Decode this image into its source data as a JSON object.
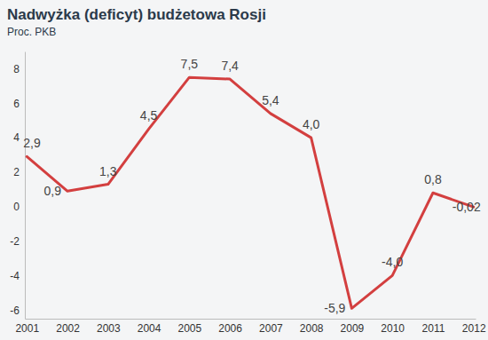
{
  "chart_data": {
    "type": "line",
    "title": "Nadwyżka (deficyt) budżetowa Rosji",
    "subtitle": "Proc. PKB",
    "categories": [
      "2001",
      "2002",
      "2003",
      "2004",
      "2005",
      "2006",
      "2007",
      "2008",
      "2009",
      "2010",
      "2011",
      "2012"
    ],
    "values": [
      2.9,
      0.9,
      1.3,
      4.5,
      7.5,
      7.4,
      5.4,
      4.0,
      -5.9,
      -4.0,
      0.8,
      -0.02
    ],
    "value_labels": [
      "2,9",
      "0,9",
      "1,3",
      "4,5",
      "7,5",
      "7,4",
      "5,4",
      "4,0",
      "-5,9",
      "-4,0",
      "0,8",
      "-0,02"
    ],
    "color": "#d33f3f",
    "ylim": [
      -6.5,
      9
    ],
    "yticks": [
      -6,
      -4,
      -2,
      0,
      2,
      4,
      6,
      8
    ],
    "grid": false,
    "data_labels": true
  }
}
